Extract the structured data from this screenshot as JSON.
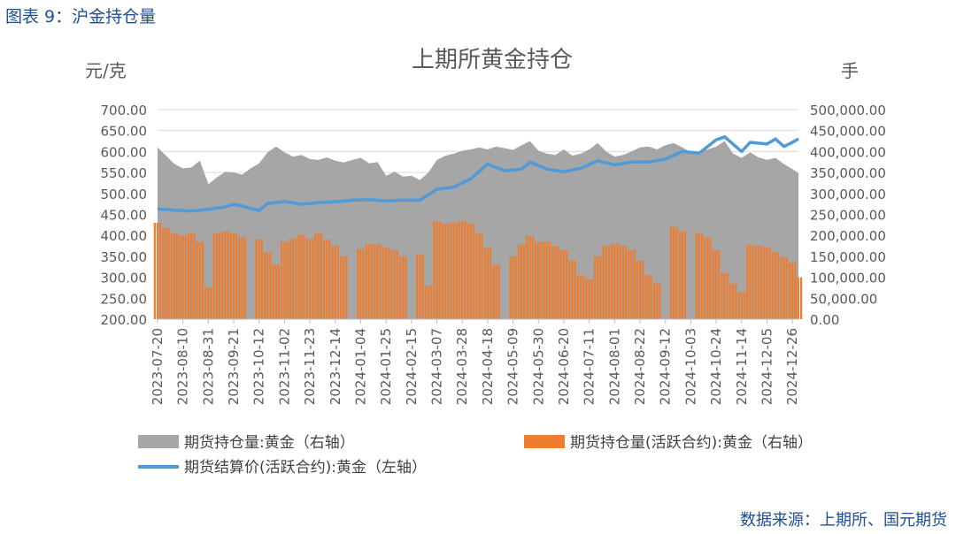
{
  "figure_caption": "图表 9：沪金持仓量",
  "source_note": "数据来源：上期所、国元期货",
  "chart_data": {
    "type": "bar",
    "title": "上期所黄金持仓",
    "left_axis_label": "元/克",
    "right_axis_label": "手",
    "left_axis": {
      "ylim": [
        200,
        700
      ],
      "ticks": [
        "700.00",
        "650.00",
        "600.00",
        "550.00",
        "500.00",
        "450.00",
        "400.00",
        "350.00",
        "300.00",
        "250.00",
        "200.00"
      ]
    },
    "right_axis": {
      "ylim": [
        0,
        500000
      ],
      "ticks": [
        "500,000.00",
        "450,000.00",
        "400,000.00",
        "350,000.00",
        "300,000.00",
        "250,000.00",
        "200,000.00",
        "150,000.00",
        "100,000.00",
        "50,000.00",
        "0.00"
      ]
    },
    "x_tick_labels": [
      "2023-07-20",
      "2023-08-10",
      "2023-08-31",
      "2023-09-21",
      "2023-10-12",
      "2023-11-02",
      "2023-11-23",
      "2023-12-14",
      "2024-01-04",
      "2024-01-25",
      "2024-02-15",
      "2024-03-07",
      "2024-03-28",
      "2024-04-18",
      "2024-05-09",
      "2024-05-30",
      "2024-06-20",
      "2024-07-11",
      "2024-08-01",
      "2024-08-22",
      "2024-09-12",
      "2024-10-03",
      "2024-10-24",
      "2024-11-14",
      "2024-12-05",
      "2024-12-26"
    ],
    "legend_position": "bottom",
    "grid": true,
    "colors": {
      "total_oi": "#a6a6a6",
      "active_oi": "#ed7d31",
      "price": "#4f9ad8",
      "caption": "#1f4e96"
    },
    "series": [
      {
        "name": "期货持仓量:黄金（右轴）",
        "axis": "right",
        "kind": "area",
        "points": [
          [
            "2023-07-20",
            410000
          ],
          [
            "2023-07-27",
            390000
          ],
          [
            "2023-08-03",
            370000
          ],
          [
            "2023-08-10",
            360000
          ],
          [
            "2023-08-17",
            362000
          ],
          [
            "2023-08-24",
            378000
          ],
          [
            "2023-08-31",
            322000
          ],
          [
            "2023-09-07",
            338000
          ],
          [
            "2023-09-14",
            352000
          ],
          [
            "2023-09-21",
            350000
          ],
          [
            "2023-09-28",
            345000
          ],
          [
            "2023-10-05",
            360000
          ],
          [
            "2023-10-12",
            372000
          ],
          [
            "2023-10-19",
            398000
          ],
          [
            "2023-10-26",
            412000
          ],
          [
            "2023-11-02",
            398000
          ],
          [
            "2023-11-09",
            388000
          ],
          [
            "2023-11-16",
            392000
          ],
          [
            "2023-11-23",
            382000
          ],
          [
            "2023-11-30",
            380000
          ],
          [
            "2023-12-07",
            386000
          ],
          [
            "2023-12-14",
            378000
          ],
          [
            "2023-12-21",
            374000
          ],
          [
            "2023-12-28",
            380000
          ],
          [
            "2024-01-04",
            385000
          ],
          [
            "2024-01-11",
            372000
          ],
          [
            "2024-01-18",
            375000
          ],
          [
            "2024-01-25",
            342000
          ],
          [
            "2024-02-01",
            352000
          ],
          [
            "2024-02-08",
            340000
          ],
          [
            "2024-02-15",
            342000
          ],
          [
            "2024-02-22",
            332000
          ],
          [
            "2024-02-29",
            350000
          ],
          [
            "2024-03-07",
            380000
          ],
          [
            "2024-03-14",
            390000
          ],
          [
            "2024-03-21",
            395000
          ],
          [
            "2024-03-28",
            402000
          ],
          [
            "2024-04-04",
            405000
          ],
          [
            "2024-04-11",
            410000
          ],
          [
            "2024-04-18",
            405000
          ],
          [
            "2024-04-25",
            412000
          ],
          [
            "2024-05-02",
            408000
          ],
          [
            "2024-05-09",
            404000
          ],
          [
            "2024-05-16",
            415000
          ],
          [
            "2024-05-23",
            425000
          ],
          [
            "2024-05-30",
            402000
          ],
          [
            "2024-06-06",
            395000
          ],
          [
            "2024-06-13",
            392000
          ],
          [
            "2024-06-20",
            405000
          ],
          [
            "2024-06-27",
            390000
          ],
          [
            "2024-07-04",
            395000
          ],
          [
            "2024-07-11",
            405000
          ],
          [
            "2024-07-18",
            420000
          ],
          [
            "2024-07-25",
            400000
          ],
          [
            "2024-08-01",
            388000
          ],
          [
            "2024-08-08",
            392000
          ],
          [
            "2024-08-15",
            400000
          ],
          [
            "2024-08-22",
            410000
          ],
          [
            "2024-08-29",
            412000
          ],
          [
            "2024-09-05",
            405000
          ],
          [
            "2024-09-12",
            415000
          ],
          [
            "2024-09-19",
            420000
          ],
          [
            "2024-09-26",
            410000
          ],
          [
            "2024-10-03",
            398000
          ],
          [
            "2024-10-10",
            396000
          ],
          [
            "2024-10-17",
            405000
          ],
          [
            "2024-10-24",
            412000
          ],
          [
            "2024-10-31",
            425000
          ],
          [
            "2024-11-07",
            395000
          ],
          [
            "2024-11-14",
            385000
          ],
          [
            "2024-11-21",
            398000
          ],
          [
            "2024-11-28",
            386000
          ],
          [
            "2024-12-05",
            380000
          ],
          [
            "2024-12-12",
            385000
          ],
          [
            "2024-12-19",
            370000
          ],
          [
            "2024-12-26",
            358000
          ],
          [
            "2024-12-31",
            348000
          ]
        ]
      },
      {
        "name": "期货持仓量(活跃合约):黄金（右轴）",
        "axis": "right",
        "kind": "bar",
        "points": [
          [
            "2023-07-20",
            230000
          ],
          [
            "2023-07-27",
            218000
          ],
          [
            "2023-08-03",
            205000
          ],
          [
            "2023-08-10",
            200000
          ],
          [
            "2023-08-17",
            205000
          ],
          [
            "2023-08-24",
            185000
          ],
          [
            "2023-08-31",
            75000
          ],
          [
            "2023-09-07",
            205000
          ],
          [
            "2023-09-14",
            210000
          ],
          [
            "2023-09-21",
            205000
          ],
          [
            "2023-09-28",
            195000
          ],
          [
            "2023-10-05",
            0
          ],
          [
            "2023-10-12",
            190000
          ],
          [
            "2023-10-19",
            160000
          ],
          [
            "2023-10-26",
            130000
          ],
          [
            "2023-11-02",
            185000
          ],
          [
            "2023-11-09",
            192000
          ],
          [
            "2023-11-16",
            202000
          ],
          [
            "2023-11-23",
            192000
          ],
          [
            "2023-11-30",
            205000
          ],
          [
            "2023-12-07",
            190000
          ],
          [
            "2023-12-14",
            175000
          ],
          [
            "2023-12-21",
            150000
          ],
          [
            "2023-12-28",
            0
          ],
          [
            "2024-01-04",
            168000
          ],
          [
            "2024-01-11",
            180000
          ],
          [
            "2024-01-18",
            178000
          ],
          [
            "2024-01-25",
            170000
          ],
          [
            "2024-02-01",
            165000
          ],
          [
            "2024-02-08",
            150000
          ],
          [
            "2024-02-15",
            0
          ],
          [
            "2024-02-22",
            155000
          ],
          [
            "2024-02-29",
            80000
          ],
          [
            "2024-03-07",
            235000
          ],
          [
            "2024-03-14",
            228000
          ],
          [
            "2024-03-21",
            230000
          ],
          [
            "2024-03-28",
            235000
          ],
          [
            "2024-04-04",
            228000
          ],
          [
            "2024-04-11",
            205000
          ],
          [
            "2024-04-18",
            170000
          ],
          [
            "2024-04-25",
            130000
          ],
          [
            "2024-05-02",
            0
          ],
          [
            "2024-05-09",
            150000
          ],
          [
            "2024-05-16",
            178000
          ],
          [
            "2024-05-23",
            198000
          ],
          [
            "2024-05-30",
            185000
          ],
          [
            "2024-06-06",
            185000
          ],
          [
            "2024-06-13",
            175000
          ],
          [
            "2024-06-20",
            165000
          ],
          [
            "2024-06-27",
            140000
          ],
          [
            "2024-07-04",
            105000
          ],
          [
            "2024-07-11",
            95000
          ],
          [
            "2024-07-18",
            150000
          ],
          [
            "2024-07-25",
            175000
          ],
          [
            "2024-08-01",
            180000
          ],
          [
            "2024-08-08",
            175000
          ],
          [
            "2024-08-15",
            165000
          ],
          [
            "2024-08-22",
            140000
          ],
          [
            "2024-08-29",
            105000
          ],
          [
            "2024-09-05",
            85000
          ],
          [
            "2024-09-12",
            0
          ],
          [
            "2024-09-19",
            220000
          ],
          [
            "2024-09-26",
            210000
          ],
          [
            "2024-10-03",
            0
          ],
          [
            "2024-10-10",
            205000
          ],
          [
            "2024-10-17",
            195000
          ],
          [
            "2024-10-24",
            165000
          ],
          [
            "2024-10-31",
            110000
          ],
          [
            "2024-11-07",
            85000
          ],
          [
            "2024-11-14",
            65000
          ],
          [
            "2024-11-21",
            178000
          ],
          [
            "2024-11-28",
            175000
          ],
          [
            "2024-12-05",
            172000
          ],
          [
            "2024-12-12",
            160000
          ],
          [
            "2024-12-19",
            148000
          ],
          [
            "2024-12-26",
            135000
          ],
          [
            "2024-12-31",
            100000
          ]
        ]
      },
      {
        "name": "期货结算价(活跃合约):黄金（左轴）",
        "axis": "left",
        "kind": "line",
        "points": [
          [
            "2023-07-20",
            463
          ],
          [
            "2023-08-03",
            460
          ],
          [
            "2023-08-17",
            458
          ],
          [
            "2023-08-31",
            462
          ],
          [
            "2023-09-14",
            468
          ],
          [
            "2023-09-21",
            474
          ],
          [
            "2023-09-28",
            470
          ],
          [
            "2023-10-12",
            459
          ],
          [
            "2023-10-19",
            476
          ],
          [
            "2023-11-02",
            481
          ],
          [
            "2023-11-16",
            474
          ],
          [
            "2023-11-30",
            478
          ],
          [
            "2023-12-14",
            480
          ],
          [
            "2023-12-28",
            484
          ],
          [
            "2024-01-11",
            485
          ],
          [
            "2024-01-25",
            482
          ],
          [
            "2024-02-08",
            484
          ],
          [
            "2024-02-22",
            484
          ],
          [
            "2024-03-07",
            510
          ],
          [
            "2024-03-21",
            515
          ],
          [
            "2024-04-04",
            535
          ],
          [
            "2024-04-18",
            570
          ],
          [
            "2024-05-02",
            554
          ],
          [
            "2024-05-16",
            558
          ],
          [
            "2024-05-23",
            575
          ],
          [
            "2024-06-06",
            558
          ],
          [
            "2024-06-20",
            552
          ],
          [
            "2024-07-04",
            560
          ],
          [
            "2024-07-18",
            578
          ],
          [
            "2024-08-01",
            568
          ],
          [
            "2024-08-15",
            575
          ],
          [
            "2024-08-29",
            575
          ],
          [
            "2024-09-12",
            582
          ],
          [
            "2024-09-26",
            600
          ],
          [
            "2024-10-10",
            596
          ],
          [
            "2024-10-24",
            628
          ],
          [
            "2024-10-31",
            635
          ],
          [
            "2024-11-14",
            600
          ],
          [
            "2024-11-21",
            622
          ],
          [
            "2024-12-05",
            618
          ],
          [
            "2024-12-12",
            630
          ],
          [
            "2024-12-19",
            612
          ],
          [
            "2024-12-26",
            622
          ],
          [
            "2024-12-31",
            630
          ]
        ]
      }
    ],
    "legend_items": [
      {
        "label": "期货持仓量:黄金（右轴）",
        "type": "area"
      },
      {
        "label": "期货持仓量(活跃合约):黄金（右轴）",
        "type": "bar"
      },
      {
        "label": "期货结算价(活跃合约):黄金（左轴）",
        "type": "line"
      }
    ]
  }
}
